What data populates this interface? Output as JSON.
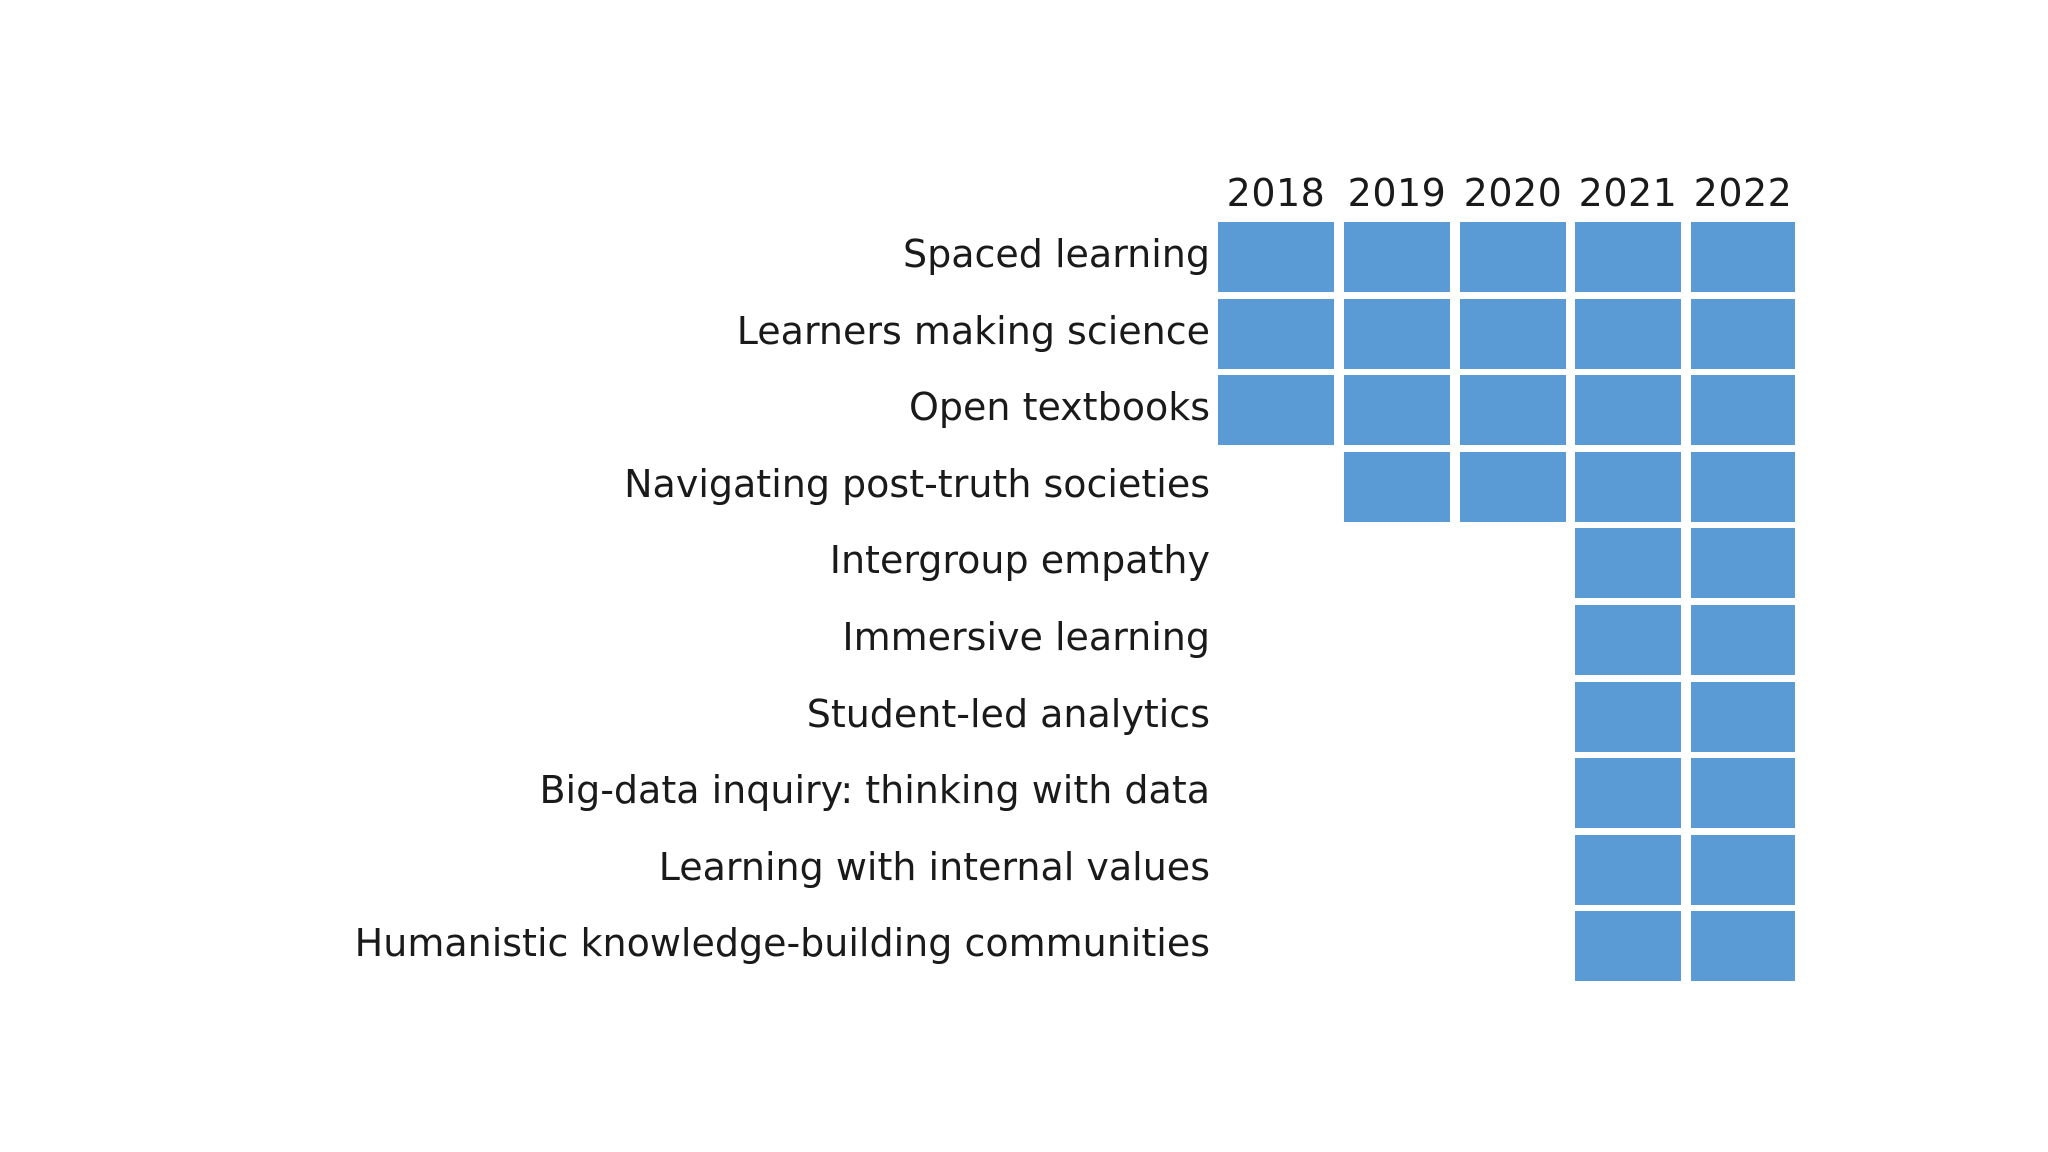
{
  "chart_data": {
    "type": "heatmap",
    "title": "",
    "columns": [
      "2018",
      "2019",
      "2020",
      "2021",
      "2022"
    ],
    "rows": [
      {
        "label": "Spaced learning",
        "present": [
          1,
          1,
          1,
          1,
          1
        ]
      },
      {
        "label": "Learners making science",
        "present": [
          1,
          1,
          1,
          1,
          1
        ]
      },
      {
        "label": "Open textbooks",
        "present": [
          1,
          1,
          1,
          1,
          1
        ]
      },
      {
        "label": "Navigating post-truth societies",
        "present": [
          0,
          1,
          1,
          1,
          1
        ]
      },
      {
        "label": "Intergroup empathy",
        "present": [
          0,
          0,
          0,
          1,
          1
        ]
      },
      {
        "label": "Immersive learning",
        "present": [
          0,
          0,
          0,
          1,
          1
        ]
      },
      {
        "label": "Student-led analytics",
        "present": [
          0,
          0,
          0,
          1,
          1
        ]
      },
      {
        "label": "Big-data inquiry: thinking with data",
        "present": [
          0,
          0,
          0,
          1,
          1
        ]
      },
      {
        "label": "Learning with internal values",
        "present": [
          0,
          0,
          0,
          1,
          1
        ]
      },
      {
        "label": "Humanistic knowledge-building communities",
        "present": [
          0,
          0,
          0,
          1,
          1
        ]
      }
    ],
    "cell_color": "#5b9bd5"
  }
}
